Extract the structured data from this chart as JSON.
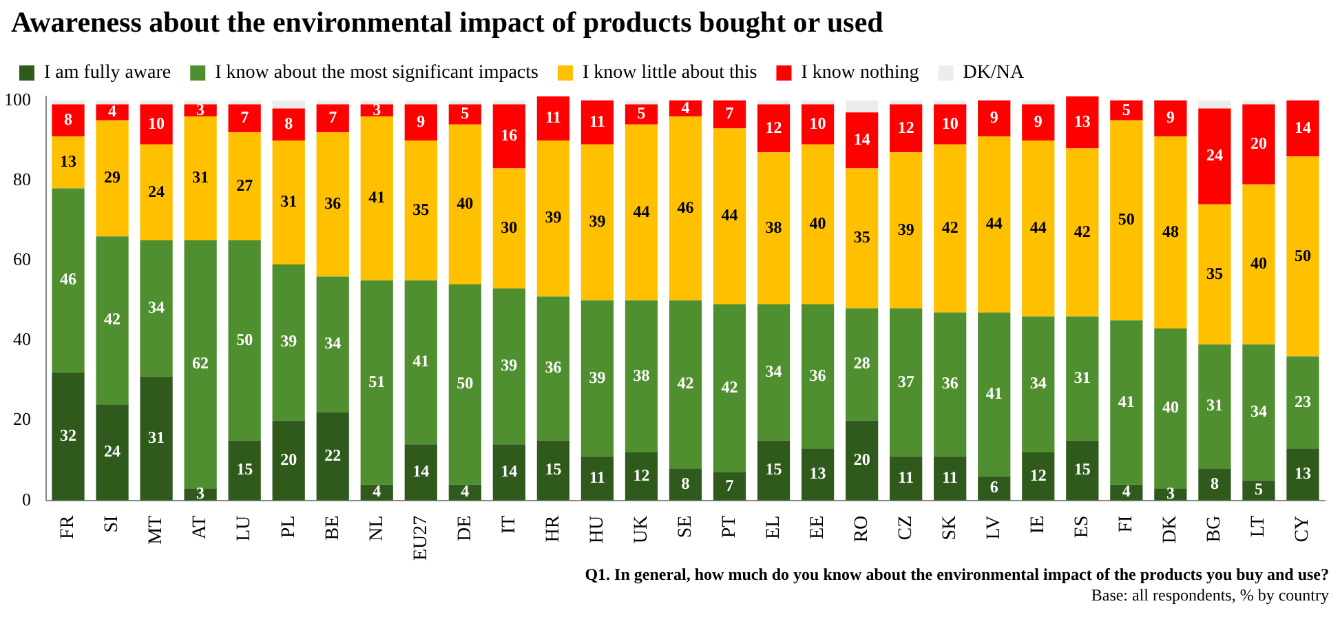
{
  "chart_data": {
    "type": "bar",
    "title": "Awareness about the environmental impact of products bought or used",
    "categories": [
      "FR",
      "SI",
      "MT",
      "AT",
      "LU",
      "PL",
      "BE",
      "NL",
      "EU27",
      "DE",
      "IT",
      "HR",
      "HU",
      "UK",
      "SE",
      "PT",
      "EL",
      "EE",
      "RO",
      "CZ",
      "SK",
      "LV",
      "IE",
      "ES",
      "FI",
      "DK",
      "BG",
      "LT",
      "CY"
    ],
    "stacked": true,
    "ylim": [
      0,
      101
    ],
    "yticks": [
      0,
      20,
      40,
      60,
      80,
      100
    ],
    "grid": false,
    "legend": "top",
    "series": [
      {
        "name": "I am fully aware",
        "color": "#2f5a1c",
        "values": [
          32,
          24,
          31,
          3,
          15,
          20,
          22,
          4,
          14,
          4,
          14,
          15,
          11,
          12,
          8,
          7,
          15,
          13,
          20,
          11,
          11,
          6,
          12,
          15,
          4,
          3,
          8,
          5,
          13
        ],
        "value_labels": [
          "32",
          "24",
          "31",
          "3",
          "15",
          "20",
          "22",
          "4",
          "14",
          "4",
          "14",
          "15",
          "11",
          "12",
          "8",
          "7",
          "15",
          "13",
          "20",
          "11",
          "11",
          "6",
          "12",
          "15",
          "4",
          "3",
          "8",
          "5",
          "13"
        ]
      },
      {
        "name": "I know about the most significant impacts",
        "color": "#4f8f2f",
        "values": [
          46,
          42,
          34,
          62,
          50,
          39,
          34,
          51,
          41,
          50,
          39,
          36,
          39,
          38,
          42,
          42,
          34,
          36,
          28,
          37,
          36,
          41,
          34,
          31,
          41,
          40,
          31,
          34,
          23
        ],
        "value_labels": [
          "46",
          "42",
          "34",
          "62",
          "50",
          "39",
          "34",
          "51",
          "41",
          "50",
          "39",
          "36",
          "39",
          "38",
          "42",
          "42",
          "34",
          "36",
          "28",
          "37",
          "36",
          "41",
          "34",
          "31",
          "41",
          "40",
          "31",
          "34",
          "23"
        ]
      },
      {
        "name": "I know little about this",
        "color": "#ffc000",
        "values": [
          13,
          29,
          24,
          31,
          27,
          31,
          36,
          41,
          35,
          40,
          30,
          39,
          39,
          44,
          46,
          44,
          38,
          40,
          35,
          39,
          42,
          44,
          44,
          42,
          50,
          48,
          35,
          40,
          50
        ],
        "value_labels": [
          "13",
          "29",
          "24",
          "31",
          "27",
          "31",
          "36",
          "41",
          "35",
          "40",
          "30",
          "39",
          "39",
          "44",
          "46",
          "44",
          "38",
          "40",
          "35",
          "39",
          "42",
          "44",
          "44",
          "42",
          "50",
          "48",
          "35",
          "40",
          "50"
        ]
      },
      {
        "name": "I know nothing",
        "color": "#ff0000",
        "values": [
          8,
          4,
          10,
          3,
          7,
          8,
          7,
          3,
          9,
          5,
          16,
          11,
          11,
          5,
          4,
          7,
          12,
          10,
          14,
          12,
          10,
          9,
          9,
          13,
          5,
          9,
          24,
          20,
          14
        ],
        "value_labels": [
          "8",
          "4",
          "10",
          "3",
          "7",
          "8",
          "7",
          "3",
          "9",
          "5",
          "16",
          "11",
          "11",
          "5",
          "4",
          "7",
          "12",
          "10",
          "14",
          "12",
          "10",
          "9",
          "9",
          "13",
          "5",
          "9",
          "24",
          "20",
          "14"
        ]
      },
      {
        "name": "DK/NA",
        "color": "#ececec",
        "values": [
          1,
          1,
          1,
          1,
          1,
          2,
          1,
          1,
          1,
          1,
          1,
          0,
          0,
          1,
          0,
          0,
          1,
          1,
          3,
          1,
          1,
          0,
          1,
          0,
          0,
          0,
          2,
          1,
          0
        ]
      }
    ],
    "annotations": [
      "Q1. In general, how much do you know about the environmental impact of the products you buy and use?",
      "Base: all respondents, % by country"
    ]
  }
}
